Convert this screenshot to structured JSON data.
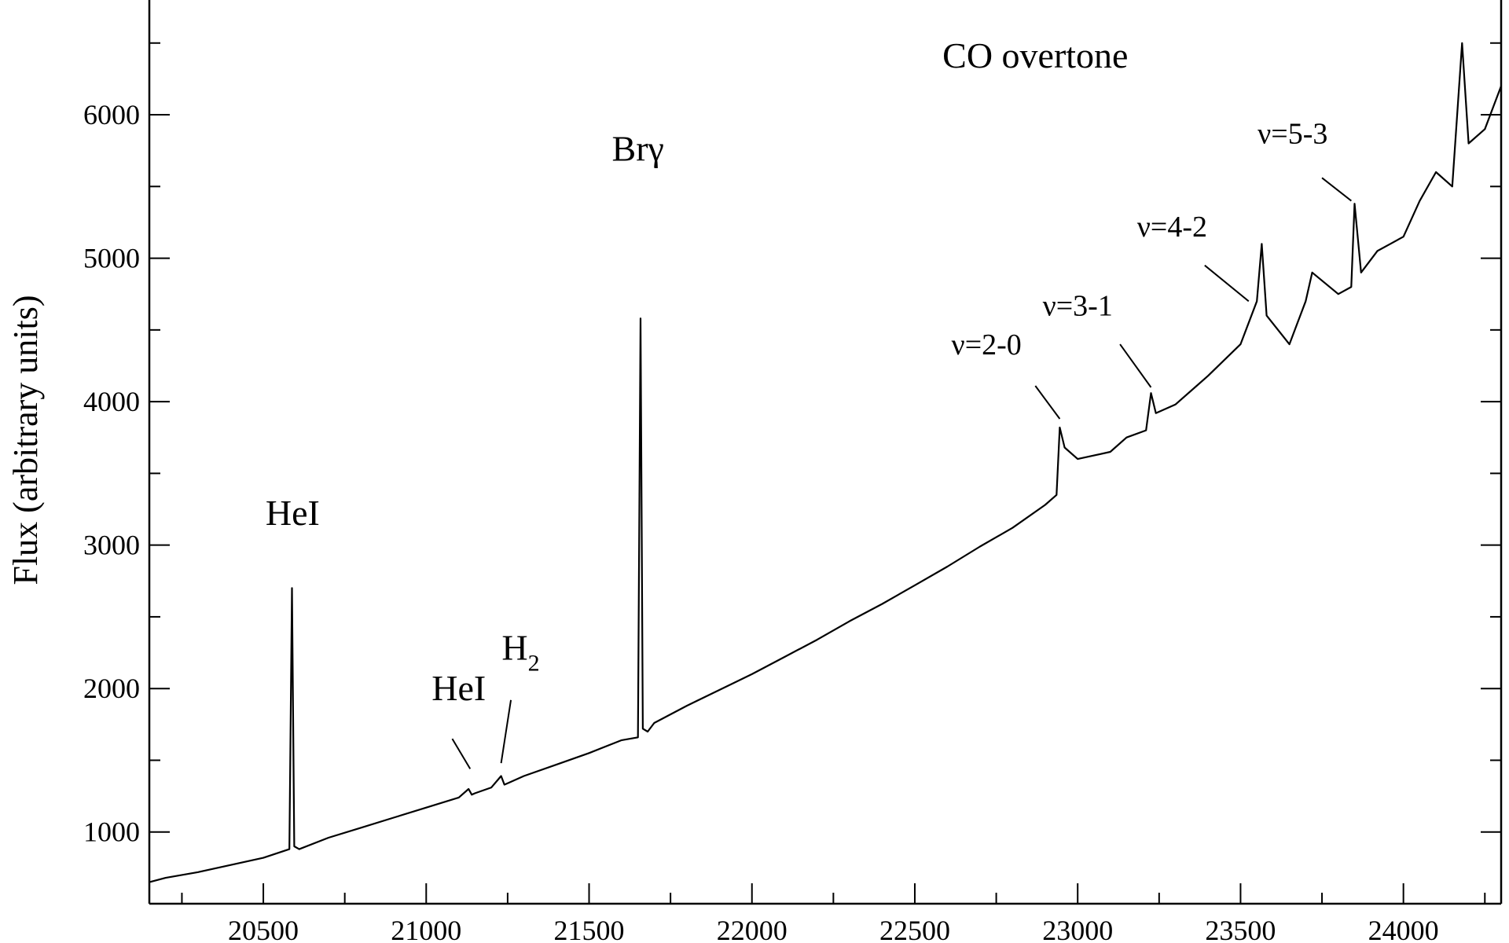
{
  "chart_data": {
    "type": "line",
    "ylabel": "Flux (arbitrary units)",
    "xlabel": "",
    "xlim": [
      20150,
      24300
    ],
    "ylim": [
      500,
      6800
    ],
    "x_ticks": [
      20500,
      21000,
      21500,
      22000,
      22500,
      23000,
      23500,
      24000
    ],
    "y_ticks": [
      1000,
      2000,
      3000,
      4000,
      5000,
      6000
    ],
    "grid": false,
    "series": [
      {
        "x": [
          20150,
          20200,
          20300,
          20400,
          20500,
          20580,
          20588,
          20595,
          20610,
          20700,
          20800,
          20900,
          21000,
          21100,
          21130,
          21140,
          21150,
          21200,
          21230,
          21240,
          21250,
          21300,
          21400,
          21500,
          21600,
          21650,
          21658,
          21665,
          21680,
          21700,
          21800,
          21900,
          22000,
          22100,
          22200,
          22300,
          22400,
          22500,
          22600,
          22700,
          22800,
          22900,
          22935,
          22945,
          22960,
          23000,
          23100,
          23150,
          23210,
          23225,
          23240,
          23300,
          23400,
          23500,
          23550,
          23565,
          23580,
          23650,
          23700,
          23720,
          23800,
          23840,
          23850,
          23870,
          23920,
          23960,
          24000,
          24050,
          24100,
          24150,
          24180,
          24200,
          24250,
          24300
        ],
        "y": [
          650,
          680,
          720,
          770,
          820,
          880,
          2700,
          900,
          880,
          960,
          1030,
          1100,
          1170,
          1240,
          1300,
          1260,
          1270,
          1310,
          1390,
          1330,
          1340,
          1390,
          1470,
          1550,
          1640,
          1660,
          4580,
          1720,
          1700,
          1760,
          1880,
          1990,
          2100,
          2220,
          2340,
          2470,
          2590,
          2720,
          2850,
          2990,
          3120,
          3280,
          3350,
          3820,
          3680,
          3600,
          3650,
          3750,
          3800,
          4060,
          3920,
          3980,
          4180,
          4400,
          4700,
          5100,
          4600,
          4400,
          4700,
          4900,
          4750,
          4800,
          5380,
          4900,
          5050,
          5100,
          5150,
          5400,
          5600,
          5500,
          6500,
          5800,
          5900,
          6200
        ]
      }
    ],
    "annotations": [
      {
        "text": "HeI",
        "x": 20590,
        "y": 3140,
        "size": "lg",
        "arrow": null
      },
      {
        "text": "HeI",
        "x": 21100,
        "y": 1920,
        "size": "lg",
        "arrow": [
          21080,
          1650,
          21135,
          1440
        ]
      },
      {
        "text": "H",
        "sub": "2",
        "x": 21290,
        "y": 2200,
        "size": "lg",
        "arrow": [
          21260,
          1920,
          21230,
          1480
        ]
      },
      {
        "text": "Brγ",
        "x": 21650,
        "y": 5680,
        "size": "lg",
        "arrow": null
      },
      {
        "text": "CO overtone",
        "x": 22870,
        "y": 6330,
        "size": "lg",
        "arrow": null
      },
      {
        "text": "ν=2-0",
        "x": 22720,
        "y": 4330,
        "size": "md",
        "arrow": [
          22870,
          4110,
          22945,
          3880
        ]
      },
      {
        "text": "ν=3-1",
        "x": 23000,
        "y": 4600,
        "size": "md",
        "arrow": [
          23130,
          4400,
          23225,
          4100
        ]
      },
      {
        "text": "ν=4-2",
        "x": 23290,
        "y": 5150,
        "size": "md",
        "arrow": [
          23390,
          4950,
          23525,
          4700
        ]
      },
      {
        "text": "ν=5-3",
        "x": 23660,
        "y": 5800,
        "size": "md",
        "arrow": [
          23750,
          5560,
          23840,
          5400
        ]
      }
    ]
  }
}
